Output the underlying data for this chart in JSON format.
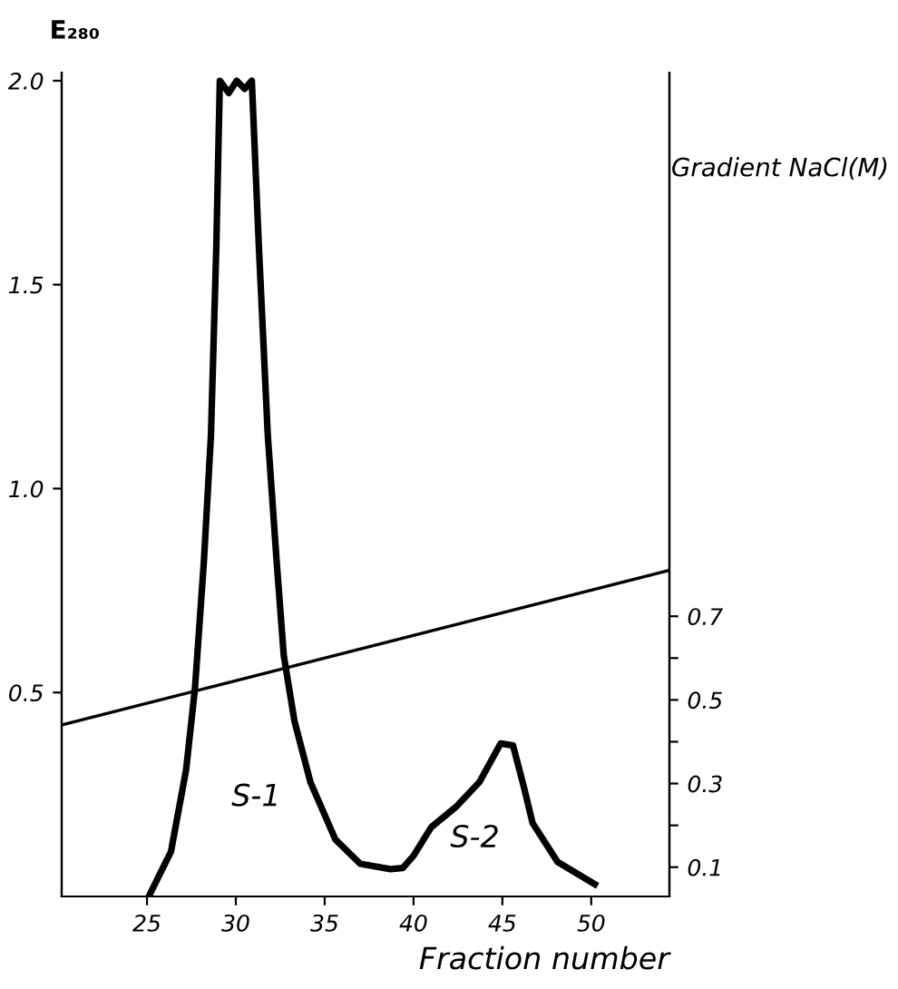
{
  "chart_data": {
    "type": "line",
    "ylabel": "E₂₈₀",
    "y2label": "Gradient NaCl(M)",
    "xlabel": "Fraction number",
    "xlim": [
      20.2,
      54.4
    ],
    "xticks": [
      25,
      30,
      35,
      40,
      45,
      50
    ],
    "ylim": [
      0,
      2.02
    ],
    "yticks": [
      0.5,
      {
        "value": 1.0,
        "label": "1.0"
      },
      1.5,
      {
        "value": 2.0,
        "label": "2.0"
      }
    ],
    "y2lim": [
      0.03,
      2.0
    ],
    "y2ticks": [
      0.1,
      {
        "value": 0.2,
        "label": null
      },
      0.3,
      {
        "value": 0.4,
        "label": null
      },
      0.5,
      {
        "value": 0.6,
        "label": null
      },
      0.7
    ],
    "grid": false,
    "legend": false,
    "marker": "none",
    "line_style": "solid",
    "series": [
      {
        "color": "#000000",
        "x": [
          25.1,
          26.35,
          27.2,
          27.7,
          28.2,
          28.6,
          28.9,
          29.1,
          29.6,
          30.05,
          30.5,
          30.9,
          31.3,
          31.8,
          32.3,
          32.7,
          33.3,
          34.2,
          35.6,
          37.0,
          38.7,
          39.4,
          40.0,
          41.0,
          42.4,
          43.7,
          44.9,
          45.6,
          46.2,
          46.7,
          48.1,
          50.2
        ],
        "values": [
          0,
          0.11,
          0.31,
          0.51,
          0.82,
          1.13,
          1.59,
          2.0,
          1.97,
          2.0,
          1.98,
          2.0,
          1.59,
          1.13,
          0.82,
          0.59,
          0.43,
          0.28,
          0.14,
          0.08,
          0.067,
          0.07,
          0.1,
          0.17,
          0.22,
          0.28,
          0.375,
          0.37,
          0.27,
          0.18,
          0.085,
          0.03
        ]
      },
      {
        "color": "#000000",
        "axis": "y2",
        "x": [
          20.2,
          54.4
        ],
        "values": [
          0.44,
          0.81
        ]
      }
    ],
    "annotations": [
      "S-1",
      "S-2"
    ]
  }
}
